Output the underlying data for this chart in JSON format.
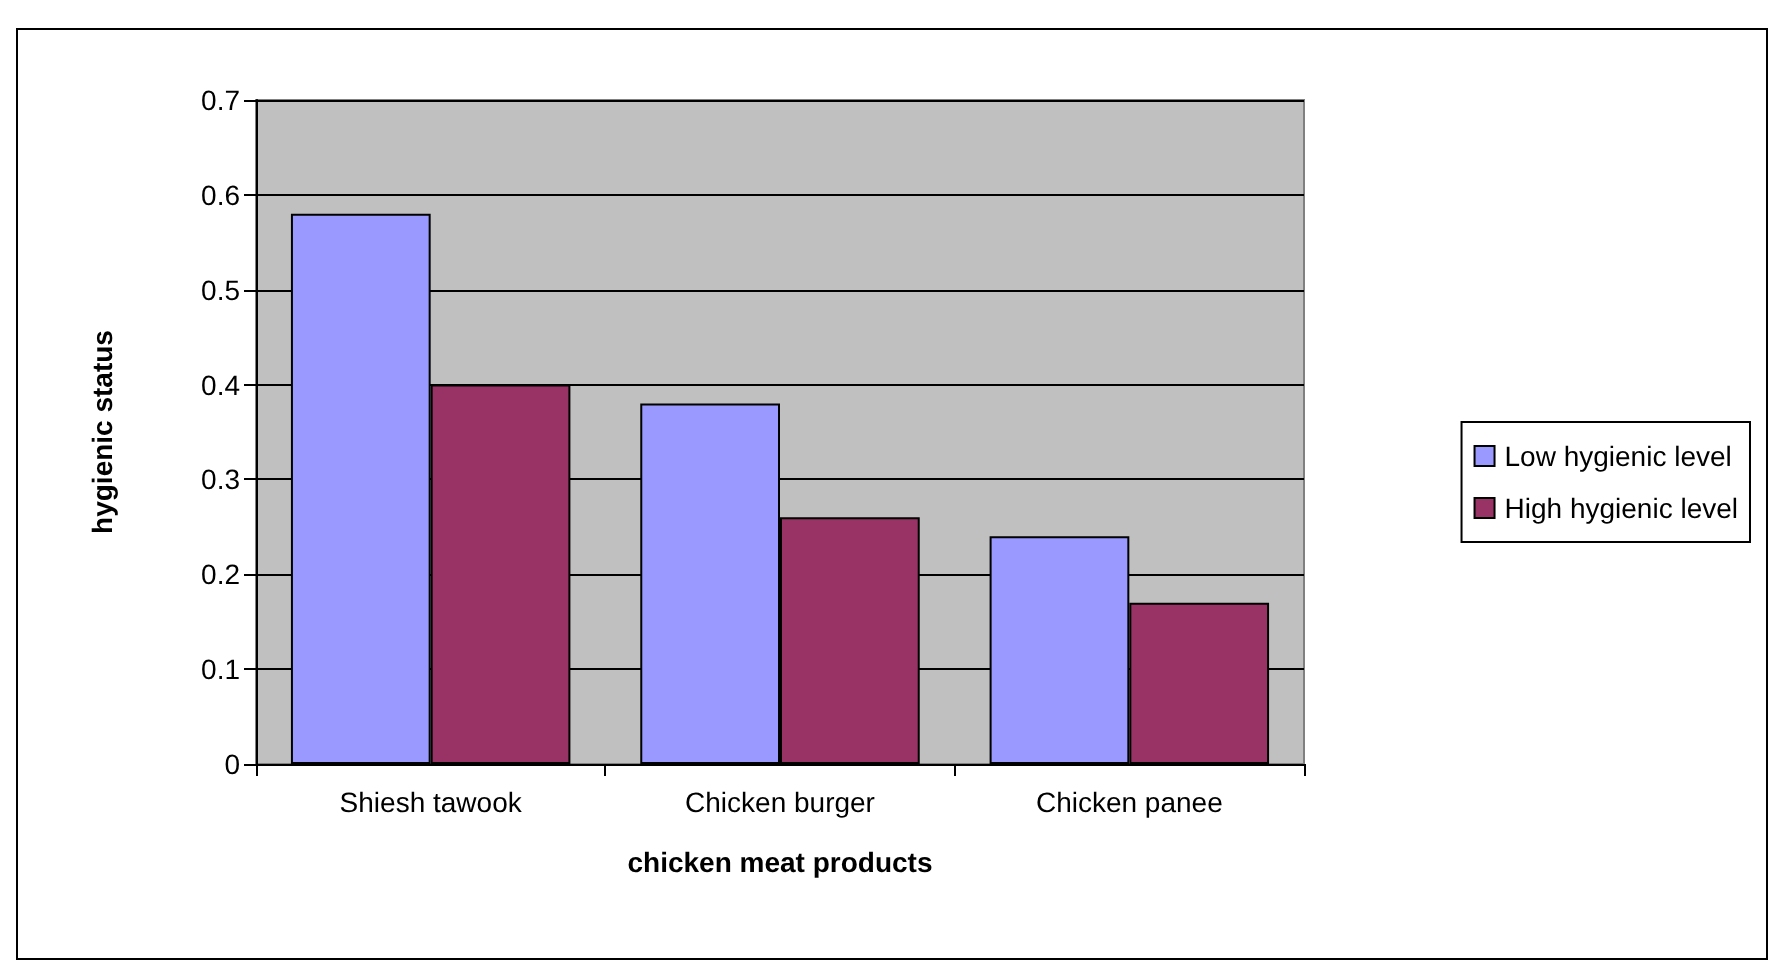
{
  "chart_data": {
    "type": "bar",
    "xlabel": "chicken meat products",
    "ylabel": "hygienic status",
    "categories": [
      "Shiesh tawook",
      "Chicken burger",
      "Chicken panee"
    ],
    "series": [
      {
        "name": "Low hygienic level",
        "color": "#9999ff",
        "values": [
          0.58,
          0.38,
          0.24
        ]
      },
      {
        "name": "High hygienic level",
        "color": "#993366",
        "values": [
          0.4,
          0.26,
          0.17
        ]
      }
    ],
    "ylim": [
      0,
      0.7
    ],
    "yticks": [
      0,
      0.1,
      0.2,
      0.3,
      0.4,
      0.5,
      0.6,
      0.7
    ],
    "grid": "y",
    "legend": "right"
  }
}
